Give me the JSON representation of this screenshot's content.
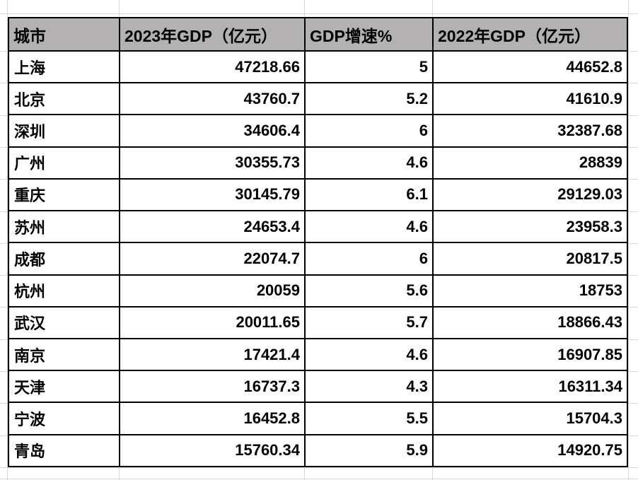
{
  "table": {
    "columns": [
      "城市",
      "2023年GDP（亿元）",
      "GDP增速%",
      "2022年GDP（亿元）"
    ],
    "rows": [
      {
        "city": "上海",
        "gdp_2023": "47218.66",
        "growth": "5",
        "gdp_2022": "44652.8"
      },
      {
        "city": "北京",
        "gdp_2023": "43760.7",
        "growth": "5.2",
        "gdp_2022": "41610.9"
      },
      {
        "city": "深圳",
        "gdp_2023": "34606.4",
        "growth": "6",
        "gdp_2022": "32387.68"
      },
      {
        "city": "广州",
        "gdp_2023": "30355.73",
        "growth": "4.6",
        "gdp_2022": "28839"
      },
      {
        "city": "重庆",
        "gdp_2023": "30145.79",
        "growth": "6.1",
        "gdp_2022": "29129.03"
      },
      {
        "city": "苏州",
        "gdp_2023": "24653.4",
        "growth": "4.6",
        "gdp_2022": "23958.3"
      },
      {
        "city": "成都",
        "gdp_2023": "22074.7",
        "growth": "6",
        "gdp_2022": "20817.5"
      },
      {
        "city": "杭州",
        "gdp_2023": "20059",
        "growth": "5.6",
        "gdp_2022": "18753"
      },
      {
        "city": "武汉",
        "gdp_2023": "20011.65",
        "growth": "5.7",
        "gdp_2022": "18866.43"
      },
      {
        "city": "南京",
        "gdp_2023": "17421.4",
        "growth": "4.6",
        "gdp_2022": "16907.85"
      },
      {
        "city": "天津",
        "gdp_2023": "16737.3",
        "growth": "4.3",
        "gdp_2022": "16311.34"
      },
      {
        "city": "宁波",
        "gdp_2023": "16452.8",
        "growth": "5.5",
        "gdp_2022": "15704.3"
      },
      {
        "city": "青岛",
        "gdp_2023": "15760.34",
        "growth": "5.9",
        "gdp_2022": "14920.75"
      }
    ]
  },
  "colors": {
    "header_bg": "#b3b1b1",
    "table_border": "#000000",
    "gridline": "#d9d9d9",
    "background": "#ffffff",
    "text": "#000000"
  }
}
